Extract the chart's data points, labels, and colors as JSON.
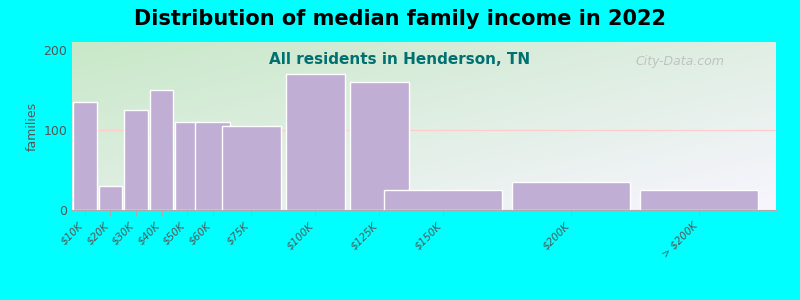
{
  "title": "Distribution of median family income in 2022",
  "subtitle": "All residents in Henderson, TN",
  "ylabel": "families",
  "categories": [
    "$10K",
    "$20K",
    "$30K",
    "$40K",
    "$50K",
    "$60K",
    "$75K",
    "$100K",
    "$125K",
    "$150K",
    "$200K",
    "> $200K"
  ],
  "x_positions": [
    10,
    20,
    30,
    40,
    50,
    60,
    75,
    100,
    125,
    150,
    200,
    250
  ],
  "bar_widths": [
    10,
    10,
    10,
    10,
    10,
    15,
    25,
    25,
    25,
    50,
    50,
    50
  ],
  "values": [
    135,
    30,
    125,
    150,
    110,
    110,
    105,
    170,
    160,
    25,
    35,
    25
  ],
  "bar_color": "#c0aed4",
  "bar_edge_color": "#ffffff",
  "ylim": [
    0,
    210
  ],
  "xlim": [
    5,
    280
  ],
  "yticks": [
    0,
    100,
    200
  ],
  "background_color": "#00ffff",
  "plot_bg_top_left": "#c8e8c8",
  "plot_bg_bottom_right": "#f5f2ff",
  "title_fontsize": 15,
  "subtitle_fontsize": 11,
  "subtitle_color": "#007070",
  "ylabel_fontsize": 9,
  "watermark": "City-Data.com",
  "watermark_color": "#bbbbbb",
  "tick_label_color": "#555555",
  "spine_color": "#aaaaaa",
  "hline_color": "#ffcccc"
}
